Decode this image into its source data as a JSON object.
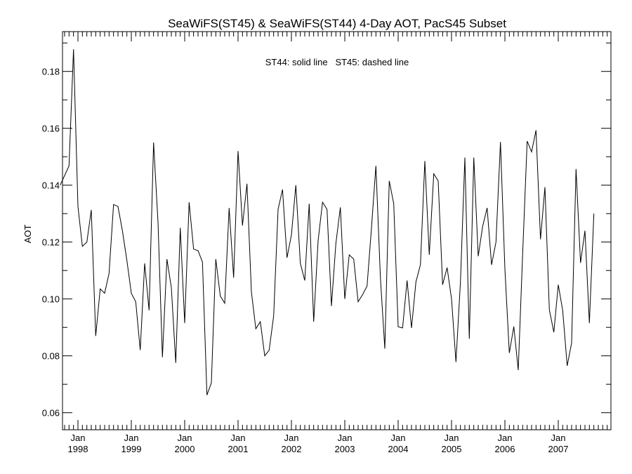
{
  "chart_data": {
    "type": "line",
    "title": "SeaWiFS(ST45) & SeaWiFS(ST44) 4-Day AOT, PacS45 Subset",
    "annotation": "ST44: solid line   ST45: dashed line",
    "xlabel": "",
    "ylabel": "AOT",
    "x_range": [
      "1997-09",
      "2007-12"
    ],
    "ylim": [
      0.054,
      0.194
    ],
    "y_ticks": [
      0.06,
      0.08,
      0.1,
      0.12,
      0.14,
      0.16,
      0.18
    ],
    "y_tick_labels": [
      "0.06",
      "0.08",
      "0.10",
      "0.12",
      "0.14",
      "0.16",
      "0.18"
    ],
    "x_ticks": [
      {
        "month": "Jan",
        "year": "1998"
      },
      {
        "month": "Jan",
        "year": "1999"
      },
      {
        "month": "Jan",
        "year": "2000"
      },
      {
        "month": "Jan",
        "year": "2001"
      },
      {
        "month": "Jan",
        "year": "2002"
      },
      {
        "month": "Jan",
        "year": "2003"
      },
      {
        "month": "Jan",
        "year": "2004"
      },
      {
        "month": "Jan",
        "year": "2005"
      },
      {
        "month": "Jan",
        "year": "2006"
      },
      {
        "month": "Jan",
        "year": "2007"
      }
    ],
    "grid": false,
    "legend": "none",
    "series": [
      {
        "style": "solid",
        "color": "#000000",
        "points": [
          [
            "1997-09",
            0.14
          ],
          [
            "1997-11",
            0.1468
          ],
          [
            "1997-12",
            0.1878
          ],
          [
            "1998-01",
            0.1325
          ],
          [
            "1998-02",
            0.1185
          ],
          [
            "1998-03",
            0.12
          ],
          [
            "1998-04",
            0.1313
          ],
          [
            "1998-05",
            0.087
          ],
          [
            "1998-06",
            0.1035
          ],
          [
            "1998-07",
            0.102
          ],
          [
            "1998-08",
            0.109
          ],
          [
            "1998-09",
            0.1332
          ],
          [
            "1998-10",
            0.1325
          ],
          [
            "1998-11",
            0.124
          ],
          [
            "1998-12",
            0.1135
          ],
          [
            "1999-01",
            0.102
          ],
          [
            "1999-02",
            0.099
          ],
          [
            "1999-03",
            0.082
          ],
          [
            "1999-04",
            0.1125
          ],
          [
            "1999-05",
            0.096
          ],
          [
            "1999-06",
            0.155
          ],
          [
            "1999-07",
            0.127
          ],
          [
            "1999-08",
            0.0795
          ],
          [
            "1999-09",
            0.114
          ],
          [
            "1999-10",
            0.104
          ],
          [
            "1999-11",
            0.0775
          ],
          [
            "1999-12",
            0.125
          ],
          [
            "2000-01",
            0.0915
          ],
          [
            "2000-02",
            0.134
          ],
          [
            "2000-03",
            0.1175
          ],
          [
            "2000-04",
            0.117
          ],
          [
            "2000-05",
            0.113
          ],
          [
            "2000-06",
            0.0662
          ],
          [
            "2000-07",
            0.0705
          ],
          [
            "2000-08",
            0.114
          ],
          [
            "2000-09",
            0.101
          ],
          [
            "2000-10",
            0.0985
          ],
          [
            "2000-11",
            0.132
          ],
          [
            "2000-12",
            0.1075
          ],
          [
            "2001-01",
            0.152
          ],
          [
            "2001-02",
            0.1258
          ],
          [
            "2001-03",
            0.1405
          ],
          [
            "2001-04",
            0.1025
          ],
          [
            "2001-05",
            0.0895
          ],
          [
            "2001-06",
            0.092
          ],
          [
            "2001-07",
            0.08
          ],
          [
            "2001-08",
            0.082
          ],
          [
            "2001-09",
            0.094
          ],
          [
            "2001-10",
            0.1315
          ],
          [
            "2001-11",
            0.1385
          ],
          [
            "2001-12",
            0.1145
          ],
          [
            "2002-01",
            0.1225
          ],
          [
            "2002-02",
            0.14
          ],
          [
            "2002-03",
            0.1125
          ],
          [
            "2002-04",
            0.1065
          ],
          [
            "2002-05",
            0.1335
          ],
          [
            "2002-06",
            0.092
          ],
          [
            "2002-07",
            0.1205
          ],
          [
            "2002-08",
            0.134
          ],
          [
            "2002-09",
            0.1315
          ],
          [
            "2002-10",
            0.0975
          ],
          [
            "2002-11",
            0.1195
          ],
          [
            "2002-12",
            0.1322
          ],
          [
            "2003-01",
            0.1
          ],
          [
            "2003-02",
            0.1155
          ],
          [
            "2003-03",
            0.114
          ],
          [
            "2003-04",
            0.099
          ],
          [
            "2003-05",
            0.1015
          ],
          [
            "2003-06",
            0.1045
          ],
          [
            "2003-07",
            0.125
          ],
          [
            "2003-08",
            0.1468
          ],
          [
            "2003-09",
            0.1075
          ],
          [
            "2003-10",
            0.0825
          ],
          [
            "2003-11",
            0.1415
          ],
          [
            "2003-12",
            0.1335
          ],
          [
            "2004-01",
            0.0902
          ],
          [
            "2004-02",
            0.0898
          ],
          [
            "2004-03",
            0.1065
          ],
          [
            "2004-04",
            0.0898
          ],
          [
            "2004-05",
            0.106
          ],
          [
            "2004-06",
            0.112
          ],
          [
            "2004-07",
            0.1485
          ],
          [
            "2004-08",
            0.1155
          ],
          [
            "2004-09",
            0.144
          ],
          [
            "2004-10",
            0.1415
          ],
          [
            "2004-11",
            0.105
          ],
          [
            "2004-12",
            0.111
          ],
          [
            "2005-01",
            0.1
          ],
          [
            "2005-02",
            0.0778
          ],
          [
            "2005-03",
            0.106
          ],
          [
            "2005-04",
            0.1497
          ],
          [
            "2005-05",
            0.086
          ],
          [
            "2005-06",
            0.1497
          ],
          [
            "2005-07",
            0.115
          ],
          [
            "2005-08",
            0.1255
          ],
          [
            "2005-09",
            0.132
          ],
          [
            "2005-10",
            0.112
          ],
          [
            "2005-11",
            0.12
          ],
          [
            "2005-12",
            0.1552
          ],
          [
            "2006-01",
            0.1105
          ],
          [
            "2006-02",
            0.081
          ],
          [
            "2006-03",
            0.0903
          ],
          [
            "2006-04",
            0.075
          ],
          [
            "2006-05",
            0.116
          ],
          [
            "2006-06",
            0.1555
          ],
          [
            "2006-07",
            0.1517
          ],
          [
            "2006-08",
            0.1593
          ],
          [
            "2006-09",
            0.121
          ],
          [
            "2006-10",
            0.1393
          ],
          [
            "2006-11",
            0.0962
          ],
          [
            "2006-12",
            0.0883
          ],
          [
            "2007-01",
            0.105
          ],
          [
            "2007-02",
            0.096
          ],
          [
            "2007-03",
            0.0765
          ],
          [
            "2007-04",
            0.0845
          ],
          [
            "2007-05",
            0.1457
          ],
          [
            "2007-06",
            0.1127
          ],
          [
            "2007-07",
            0.124
          ],
          [
            "2007-08",
            0.0915
          ],
          [
            "2007-09",
            0.13
          ]
        ]
      }
    ]
  }
}
